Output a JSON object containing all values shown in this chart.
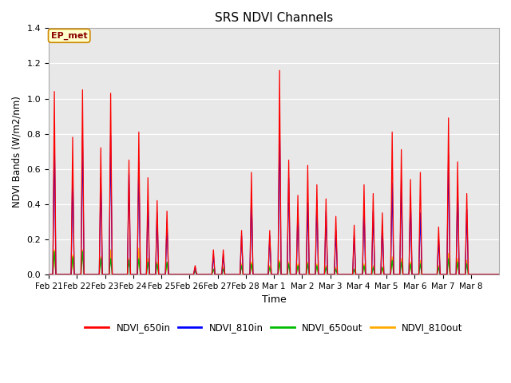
{
  "title": "SRS NDVI Channels",
  "xlabel": "Time",
  "ylabel": "NDVI Bands (W/m2/nm)",
  "annotation": "EP_met",
  "ylim": [
    0,
    1.4
  ],
  "legend_labels": [
    "NDVI_650in",
    "NDVI_810in",
    "NDVI_650out",
    "NDVI_810out"
  ],
  "legend_colors": [
    "#ff0000",
    "#0000ff",
    "#00bb00",
    "#ffaa00"
  ],
  "background_color": "#e8e8e8",
  "xtick_labels": [
    "Feb 21",
    "Feb 22",
    "Feb 23",
    "Feb 24",
    "Feb 25",
    "Feb 26",
    "Feb 27",
    "Feb 28",
    "Mar 1",
    "Mar 2",
    "Mar 3",
    "Mar 4",
    "Mar 5",
    "Mar 6",
    "Mar 7",
    "Mar 8"
  ],
  "n_days": 16,
  "spikes_650in": [
    [
      1.04,
      0.78
    ],
    [
      1.05,
      0.72
    ],
    [
      1.03,
      0.65
    ],
    [
      0.81,
      0.55,
      0.42
    ],
    [
      0.36
    ],
    [
      0.05,
      0.14
    ],
    [
      0.14,
      0.25
    ],
    [
      0.58,
      0.25
    ],
    [
      1.16,
      0.65,
      0.45
    ],
    [
      0.62,
      0.51,
      0.43
    ],
    [
      0.33,
      0.28
    ],
    [
      0.51,
      0.46,
      0.35
    ],
    [
      0.81,
      0.71,
      0.54
    ],
    [
      0.58,
      0.27
    ],
    [
      0.89,
      0.64,
      0.46
    ],
    []
  ],
  "spikes_810in": [
    [
      0.79,
      0.6
    ],
    [
      0.79,
      0.55
    ],
    [
      0.79,
      0.57
    ],
    [
      0.64,
      0.42,
      0.35
    ],
    [
      0.3
    ],
    [
      0.04,
      0.11
    ],
    [
      0.11,
      0.22
    ],
    [
      0.46,
      0.22
    ],
    [
      0.89,
      0.55,
      0.38
    ],
    [
      0.41,
      0.42,
      0.36
    ],
    [
      0.25,
      0.22
    ],
    [
      0.39,
      0.36,
      0.28
    ],
    [
      0.52,
      0.54,
      0.44
    ],
    [
      0.35,
      0.2
    ],
    [
      0.68,
      0.5,
      0.37
    ],
    []
  ],
  "spikes_650out": [
    [
      0.13,
      0.1
    ],
    [
      0.13,
      0.09
    ],
    [
      0.09,
      0.08
    ],
    [
      0.09,
      0.07,
      0.06
    ],
    [
      0.07
    ],
    [
      0.02,
      0.03
    ],
    [
      0.03,
      0.05
    ],
    [
      0.06,
      0.04
    ],
    [
      0.07,
      0.06,
      0.05
    ],
    [
      0.06,
      0.05,
      0.04
    ],
    [
      0.03,
      0.03
    ],
    [
      0.05,
      0.04,
      0.04
    ],
    [
      0.08,
      0.07,
      0.06
    ],
    [
      0.06,
      0.04
    ],
    [
      0.09,
      0.07,
      0.06
    ],
    []
  ],
  "spikes_810out": [
    [
      0.14,
      0.11
    ],
    [
      0.14,
      0.1
    ],
    [
      0.14,
      0.09
    ],
    [
      0.15,
      0.09,
      0.07
    ],
    [
      0.07
    ],
    [
      0.02,
      0.03
    ],
    [
      0.04,
      0.06
    ],
    [
      0.07,
      0.05
    ],
    [
      0.08,
      0.07,
      0.06
    ],
    [
      0.07,
      0.06,
      0.05
    ],
    [
      0.04,
      0.03
    ],
    [
      0.06,
      0.05,
      0.04
    ],
    [
      0.1,
      0.09,
      0.07
    ],
    [
      0.08,
      0.05
    ],
    [
      0.12,
      0.09,
      0.08
    ],
    []
  ]
}
